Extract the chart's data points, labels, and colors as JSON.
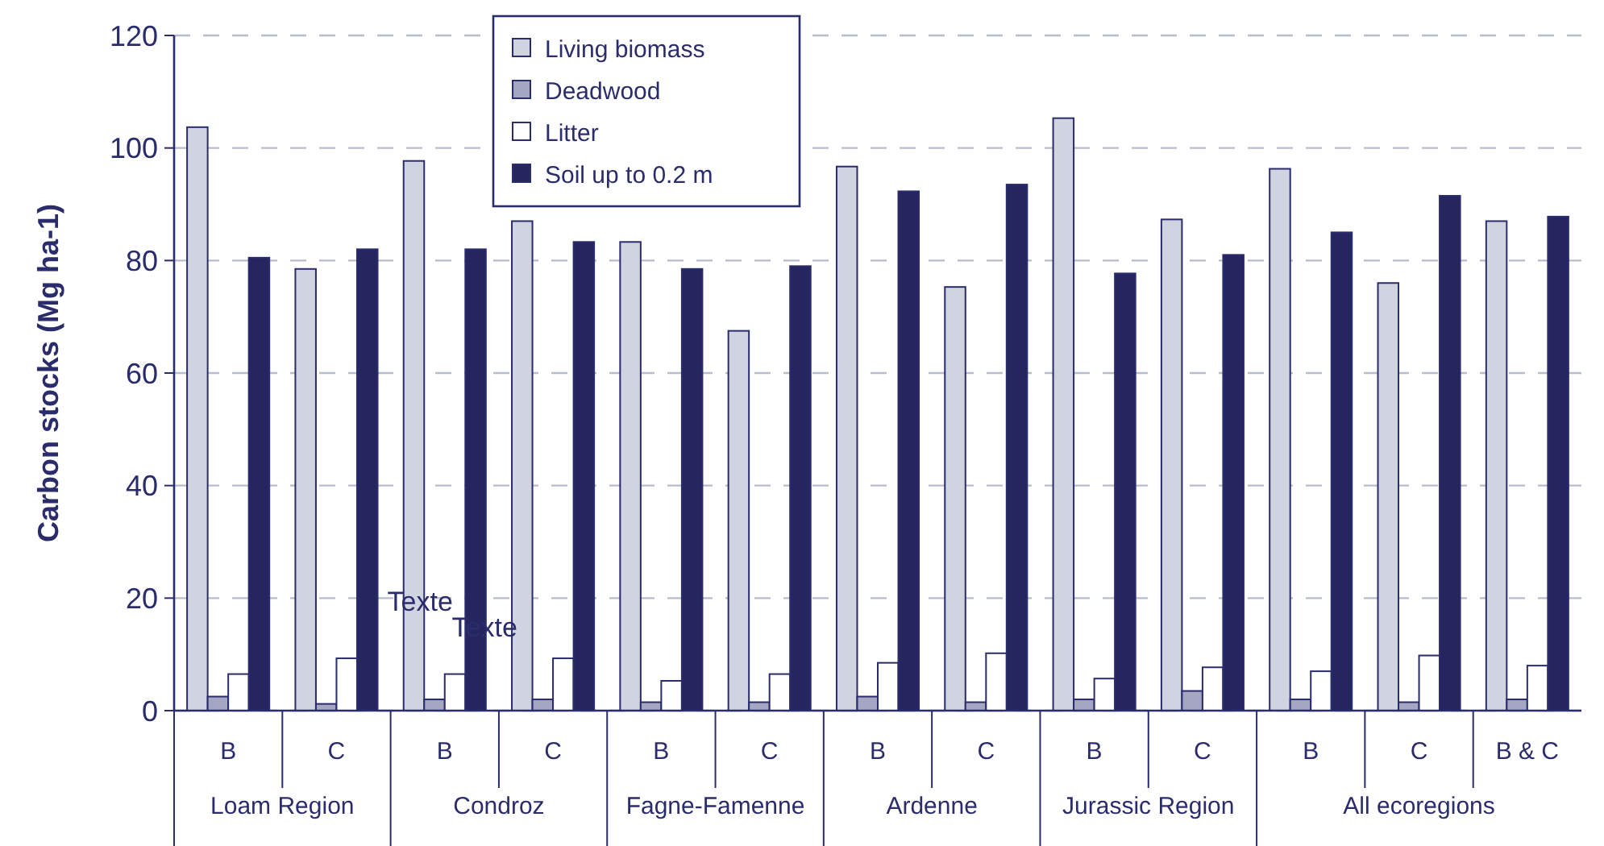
{
  "chart_data": {
    "type": "bar",
    "ylabel": "Carbon stocks (Mg ha-1)",
    "categories": [
      "B",
      "C",
      "B",
      "C",
      "B",
      "C",
      "B",
      "C",
      "B",
      "C",
      "B",
      "C",
      "B & C"
    ],
    "series": [
      {
        "name": "Living biomass",
        "color": "#d0d3e0",
        "values": [
          103.7,
          78.5,
          97.7,
          87,
          83.3,
          67.5,
          96.7,
          75.3,
          105.3,
          87.3,
          96.3,
          76,
          87
        ]
      },
      {
        "name": "Deadwood",
        "color": "#a4a6c4",
        "values": [
          2.5,
          1.2,
          2,
          2,
          1.5,
          1.5,
          2.5,
          1.5,
          2,
          3.5,
          2,
          1.5,
          2
        ]
      },
      {
        "name": "Litter",
        "color": "#ffffff",
        "values": [
          6.5,
          9.3,
          6.5,
          9.3,
          5.3,
          6.5,
          8.5,
          10.2,
          5.7,
          7.7,
          7,
          9.8,
          8
        ]
      },
      {
        "name": "Soil up to 0.2 m",
        "color": "#252560",
        "values": [
          80.5,
          82,
          82,
          83.3,
          78.5,
          79,
          92.3,
          93.5,
          77.7,
          81,
          85,
          91.5,
          87.8
        ]
      }
    ],
    "annotations": [
      "Loam Region",
      "Condroz",
      "Fagne-Famenne",
      "Ardenne",
      "Jurassic Region",
      "All ecoregions",
      "Texte",
      "Texte"
    ],
    "ylim": [
      0,
      120
    ],
    "yticks": [
      0,
      20,
      40,
      60,
      80,
      100,
      120
    ],
    "grid": "y",
    "legend": "top left"
  }
}
